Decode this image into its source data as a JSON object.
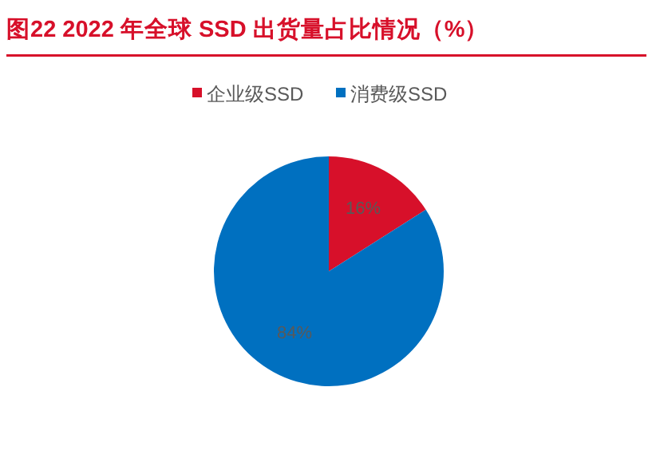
{
  "chart_data": {
    "type": "pie",
    "title": "图22  2022 年全球 SSD 出货量占比情况（%）",
    "categories": [
      "企业级SSD",
      "消费级SSD"
    ],
    "values": [
      16,
      84
    ],
    "colors": [
      "#d7102a",
      "#0070c0"
    ],
    "value_labels": [
      "16%",
      "84%"
    ],
    "legend": "top"
  }
}
